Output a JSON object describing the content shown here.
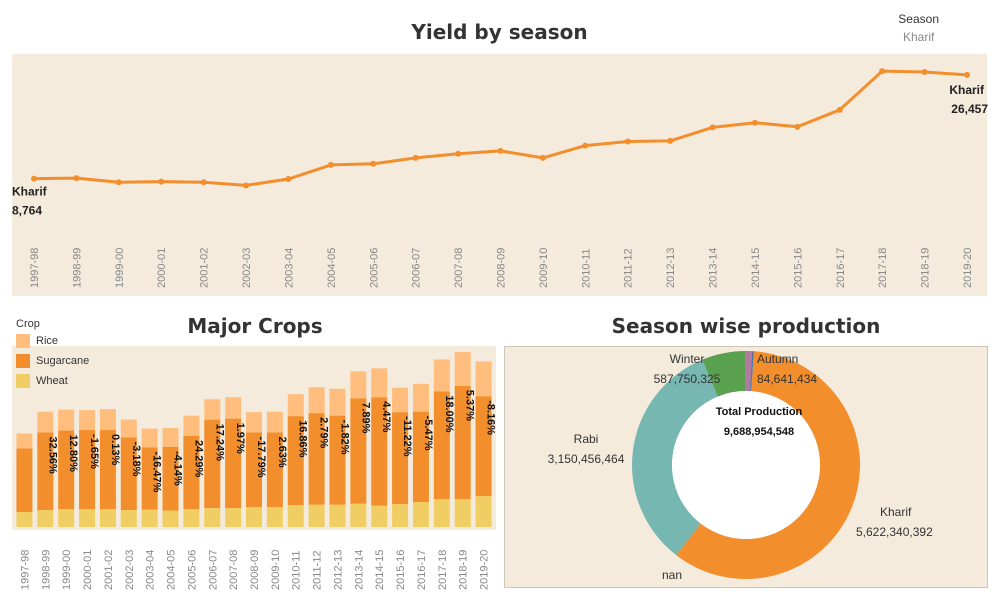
{
  "colors": {
    "panel": "#f5ebdd",
    "line": "#f28e2b",
    "rice": "#ffbe7d",
    "sugarcane": "#f28e2b",
    "wheat": "#f1ce63",
    "kharif": "#f28e2b",
    "rabi": "#76b7b2",
    "winter": "#59a14f",
    "autumn": "#b07aa1",
    "whole_year": "#4e79a7"
  },
  "filter": {
    "label": "Season",
    "value": "Kharif"
  },
  "chart_data": [
    {
      "type": "line",
      "title": "Yield by season",
      "categories": [
        "1997-98",
        "1998-99",
        "1999-00",
        "2000-01",
        "2001-02",
        "2002-03",
        "2003-04",
        "2004-05",
        "2005-06",
        "2006-07",
        "2007-08",
        "2008-09",
        "2009-10",
        "2010-11",
        "2011-12",
        "2012-13",
        "2013-14",
        "2014-15",
        "2015-16",
        "2016-17",
        "2017-18",
        "2018-19",
        "2019-20"
      ],
      "series": [
        {
          "name": "Kharif",
          "values": [
            8764,
            8850,
            8150,
            8250,
            8150,
            7600,
            8700,
            11100,
            11300,
            12300,
            13000,
            13500,
            12300,
            14400,
            15100,
            15200,
            17500,
            18300,
            17600,
            20500,
            27100,
            26950,
            26457
          ]
        }
      ],
      "ylim": [
        0,
        29000
      ],
      "annotations": [
        {
          "label": "Kharif",
          "value_text": "8,764",
          "index": 0
        },
        {
          "label": "Kharif",
          "value_text": "26,457",
          "index": 22
        }
      ]
    },
    {
      "type": "bar",
      "stacked": true,
      "title": "Major Crops",
      "legend_title": "Crop",
      "categories": [
        "1997-98",
        "1998-99",
        "1999-00",
        "2000-01",
        "2001-02",
        "2002-03",
        "2003-04",
        "2004-05",
        "2005-06",
        "2006-07",
        "2007-08",
        "2008-09",
        "2009-10",
        "2010-11",
        "2011-12",
        "2012-13",
        "2013-14",
        "2014-15",
        "2015-16",
        "2016-17",
        "2017-18",
        "2018-19",
        "2019-20"
      ],
      "series": [
        {
          "name": "Wheat",
          "values": [
            3.0,
            3.4,
            3.6,
            3.6,
            3.6,
            3.4,
            3.5,
            3.3,
            3.6,
            3.8,
            3.8,
            4.0,
            4.0,
            4.4,
            4.5,
            4.5,
            4.7,
            4.3,
            4.6,
            5.0,
            5.6,
            5.6,
            6.2
          ]
        },
        {
          "name": "Sugarcane",
          "values": [
            12.8,
            15.6,
            15.8,
            15.9,
            15.9,
            14.6,
            12.5,
            12.8,
            14.7,
            17.8,
            18.0,
            15.0,
            15.0,
            17.9,
            18.4,
            17.9,
            21.2,
            21.8,
            18.5,
            18.2,
            21.7,
            22.8,
            20.1
          ]
        },
        {
          "name": "Rice",
          "values": [
            3.0,
            4.2,
            4.2,
            4.0,
            4.2,
            3.6,
            3.8,
            3.8,
            4.1,
            4.1,
            4.3,
            4.1,
            4.2,
            4.4,
            5.2,
            5.4,
            5.4,
            5.8,
            4.9,
            5.6,
            6.4,
            6.8,
            7.0
          ]
        }
      ],
      "ylim": [
        0,
        36
      ],
      "bar_labels": [
        "",
        "32.56%",
        "12.80%",
        "-1.65%",
        "0.13%",
        "-3.18%",
        "-16.47%",
        "-4.14%",
        "24.29%",
        "17.24%",
        "1.97%",
        "-17.79%",
        "2.63%",
        "16.86%",
        "2.79%",
        "-1.82%",
        "7.89%",
        "4.47%",
        "-11.22%",
        "-5.47%",
        "18.00%",
        "5.37%",
        "-8.16%"
      ]
    },
    {
      "type": "pie",
      "donut": true,
      "title": "Season wise production",
      "center_label": "Total Production",
      "center_value": "9,688,954,548",
      "slices": [
        {
          "name": "Kharif",
          "value": 5622340392,
          "value_text": "5,622,340,392",
          "color_key": "kharif"
        },
        {
          "name": "nan",
          "value": 0,
          "value_text": "",
          "color_key": "rabi"
        },
        {
          "name": "Rabi",
          "value": 3150456464,
          "value_text": "3,150,456,464",
          "color_key": "rabi"
        },
        {
          "name": "Winter",
          "value": 587750325,
          "value_text": "587,750,325",
          "color_key": "winter"
        },
        {
          "name": "Autumn",
          "value": 84641434,
          "value_text": "84,641,434",
          "color_key": "autumn"
        },
        {
          "name": "",
          "value": 24000000,
          "value_text": "",
          "color_key": "whole_year"
        }
      ]
    }
  ]
}
